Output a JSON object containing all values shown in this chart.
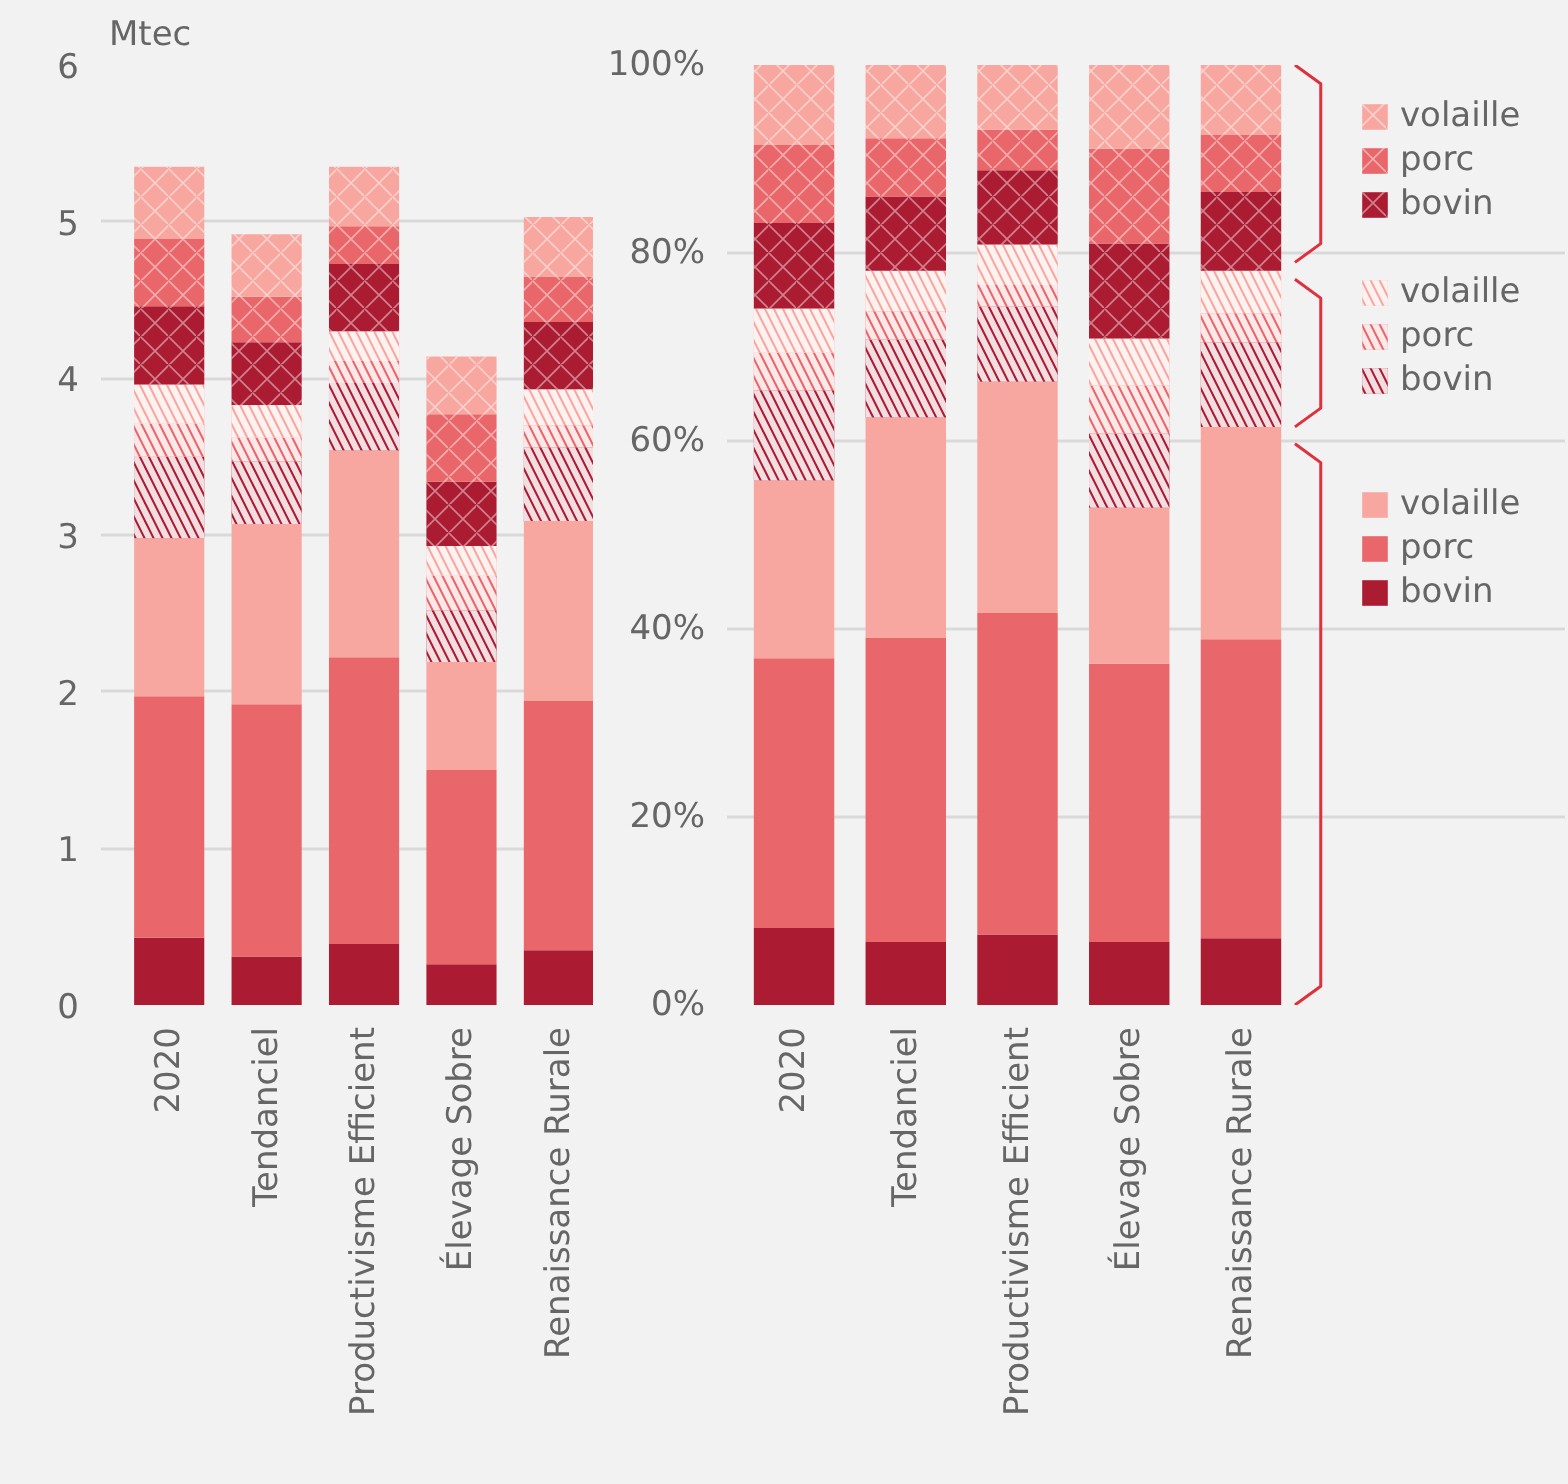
{
  "chart_data": [
    {
      "type": "bar",
      "stacked": true,
      "ylabel": "Mtec",
      "categories": [
        "2020",
        "Tendanciel",
        "Productivisme Efficient",
        "Élevage Sobre",
        "Renaissance Rurale"
      ],
      "ylim": [
        0,
        6
      ],
      "yticks": [
        0,
        1,
        2,
        3,
        4,
        5,
        6
      ],
      "grid": "y",
      "legend": false,
      "series": [
        {
          "color": "#ab1c32",
          "values": [
            0.43,
            0.31,
            0.39,
            0.26,
            0.35
          ]
        },
        {
          "color": "#e9676a",
          "values": [
            1.54,
            1.61,
            1.83,
            1.24,
            1.59
          ]
        },
        {
          "color": "#f7a7a0",
          "values": [
            1.01,
            1.15,
            1.32,
            0.69,
            1.15
          ]
        },
        {
          "color": "#ab1c32",
          "values": [
            0.52,
            0.4,
            0.43,
            0.33,
            0.47
          ]
        },
        {
          "color": "#e9676a",
          "values": [
            0.21,
            0.15,
            0.14,
            0.22,
            0.14
          ]
        },
        {
          "color": "#f7a7a0",
          "values": [
            0.25,
            0.21,
            0.19,
            0.19,
            0.23
          ]
        },
        {
          "color": "#ab1c32",
          "values": [
            0.5,
            0.4,
            0.43,
            0.41,
            0.43
          ]
        },
        {
          "color": "#e9676a",
          "values": [
            0.43,
            0.29,
            0.24,
            0.43,
            0.29
          ]
        },
        {
          "color": "#f7a7a0",
          "values": [
            0.46,
            0.4,
            0.38,
            0.37,
            0.38
          ]
        }
      ]
    },
    {
      "type": "bar",
      "stacked": true,
      "categories": [
        "2020",
        "Tendanciel",
        "Productivisme Efficient",
        "Élevage Sobre",
        "Renaissance Rurale"
      ],
      "ylim": [
        0,
        100
      ],
      "yticks": [
        {
          "value": 0,
          "label": "0%"
        },
        {
          "value": 20,
          "label": "20%"
        },
        {
          "value": 40,
          "label": "40%"
        },
        {
          "value": 60,
          "label": "60%"
        },
        {
          "value": 80,
          "label": "80%"
        },
        {
          "value": 100,
          "label": "100%"
        }
      ],
      "grid": "y",
      "legend": "right",
      "series": [
        {
          "name": "bovin",
          "color": "#ab1c32",
          "values": [
            8.2,
            6.7,
            7.5,
            6.7,
            7.1
          ]
        },
        {
          "name": "porc",
          "color": "#e9676a",
          "values": [
            28.7,
            32.4,
            34.2,
            29.6,
            31.8
          ]
        },
        {
          "name": "volaille",
          "color": "#f7a7a0",
          "values": [
            18.9,
            23.4,
            24.6,
            16.6,
            22.6
          ]
        },
        {
          "name": "bovin",
          "color": "#ab1c32",
          "values": [
            9.6,
            8.3,
            8.0,
            7.9,
            9.0
          ]
        },
        {
          "name": "porc",
          "color": "#e9676a",
          "values": [
            4.0,
            3.0,
            2.3,
            5.1,
            3.1
          ]
        },
        {
          "name": "volaille",
          "color": "#f7a7a0",
          "values": [
            4.7,
            4.3,
            4.3,
            5.0,
            4.5
          ]
        },
        {
          "name": "bovin",
          "color": "#ab1c32",
          "values": [
            9.1,
            7.9,
            7.9,
            10.1,
            8.4
          ]
        },
        {
          "name": "porc",
          "color": "#e9676a",
          "values": [
            8.3,
            6.2,
            4.3,
            10.1,
            6.1
          ]
        },
        {
          "name": "volaille",
          "color": "#f7a7a0",
          "values": [
            8.5,
            7.8,
            7.2,
            8.9,
            7.4
          ]
        }
      ]
    }
  ]
}
